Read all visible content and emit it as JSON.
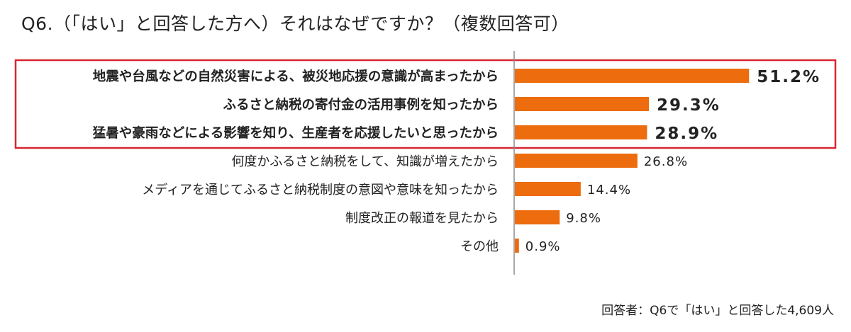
{
  "title": "Q6.（「はい」と回答した方へ）それはなぜですか？（複数回答可）",
  "footnote": "回答者：Q6で「はい」と回答した4,609人",
  "chart_data": {
    "type": "bar",
    "orientation": "horizontal",
    "title": "Q6.（「はい」と回答した方へ）それはなぜですか？（複数回答可）",
    "unit": "%",
    "xlim": [
      0,
      55
    ],
    "categories": [
      "地震や台風などの自然災害による、被災地応援の意識が高まったから",
      "ふるさと納税の寄付金の活用事例を知ったから",
      "猛暑や豪雨などによる影響を知り、生産者を応援したいと思ったから",
      "何度かふるさと納税をして、知識が増えたから",
      "メディアを通じてふるさと納税制度の意図や意味を知ったから",
      "制度改正の報道を見たから",
      "その他"
    ],
    "values": [
      51.2,
      29.3,
      28.9,
      26.8,
      14.4,
      9.8,
      0.9
    ],
    "value_labels": [
      "51.2%",
      "29.3%",
      "28.9%",
      "26.8%",
      "14.4%",
      "9.8%",
      "0.9%"
    ],
    "highlighted": [
      true,
      true,
      true,
      false,
      false,
      false,
      false
    ],
    "bar_color": "#ed6c0d",
    "highlight_box_color": "#d7262f",
    "axis_color": "#8c8c8c",
    "grid": false,
    "legend": "none"
  }
}
